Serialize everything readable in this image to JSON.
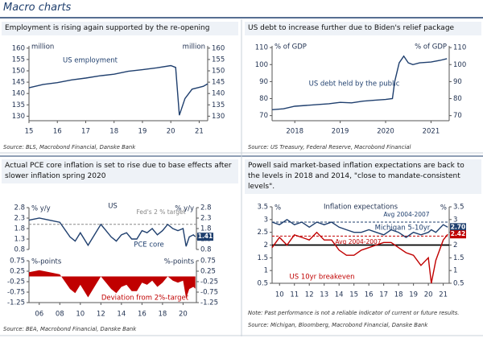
{
  "page_title": "Macro charts",
  "chart_data": [
    {
      "type": "line",
      "title": "Employment is rising again supported by the re-opening",
      "source": "Source: BLS, Macrobond Financial, Danske Bank",
      "ylabel": "million",
      "y2label": "million",
      "x": [
        2015,
        2015.5,
        2016,
        2016.5,
        2017,
        2017.5,
        2018,
        2018.5,
        2019,
        2019.5,
        2020,
        2020.17,
        2020.3,
        2020.5,
        2020.75,
        2021,
        2021.15,
        2021.3
      ],
      "series": [
        {
          "name": "US employment",
          "color": "#1f3f6e",
          "values": [
            142.5,
            144,
            144.8,
            146,
            146.8,
            147.8,
            148.5,
            149.8,
            150.5,
            151.3,
            152.3,
            151.5,
            130.4,
            137.8,
            141.9,
            142.7,
            143.2,
            144.3
          ]
        }
      ],
      "xlim": [
        2015,
        2021.3
      ],
      "ylim": [
        128,
        161
      ],
      "xticks": [
        {
          "value": 2015,
          "label": "15"
        },
        {
          "value": 2016,
          "label": "16"
        },
        {
          "value": 2017,
          "label": "17"
        },
        {
          "value": 2018,
          "label": "18"
        },
        {
          "value": 2019,
          "label": "19"
        },
        {
          "value": 2020,
          "label": "20"
        },
        {
          "value": 2021,
          "label": "21"
        }
      ],
      "yticks": [
        130,
        135,
        140,
        145,
        150,
        155,
        160
      ],
      "y2lim": [
        128,
        161
      ],
      "y2ticks": [
        130,
        135,
        140,
        145,
        150,
        155,
        160
      ]
    },
    {
      "type": "line",
      "title": "US debt to increase further due to Biden's relief package",
      "source": "Source: US Treasury, Federal Reserve, Macrobond Financial",
      "ylabel": "% of GDP",
      "y2label": "% of GDP",
      "x": [
        2017.5,
        2017.75,
        2018,
        2018.25,
        2018.5,
        2018.75,
        2019,
        2019.25,
        2019.5,
        2019.75,
        2020,
        2020.15,
        2020.2,
        2020.3,
        2020.4,
        2020.5,
        2020.6,
        2020.75,
        2021,
        2021.2,
        2021.35
      ],
      "series": [
        {
          "name": "US debt held by the public",
          "color": "#1f3f6e",
          "values": [
            73.5,
            74,
            75.5,
            76,
            76.5,
            77,
            77.8,
            77.5,
            78.5,
            79,
            79.5,
            80,
            90,
            101,
            105,
            101,
            100,
            101,
            101.5,
            102.5,
            103.5
          ]
        }
      ],
      "xlim": [
        2017.5,
        2021.4
      ],
      "ylim": [
        67,
        111
      ],
      "xticks": [
        2018,
        2019,
        2020,
        2021
      ],
      "yticks": [
        70,
        80,
        90,
        100,
        110
      ],
      "y2lim": [
        67,
        111
      ],
      "y2ticks": [
        70,
        80,
        90,
        100,
        110
      ]
    },
    {
      "type": "line",
      "title": "Actual PCE core inflation is set to rise due to base effects after slower inflation spring 2020",
      "source": "Source: BEA, Macrobond Financial, Danske Bank",
      "subtitle": "US",
      "ylabel": "% y/y",
      "y2label": "% y/y",
      "x": [
        2005,
        2006,
        2007,
        2008,
        2009,
        2009.5,
        2010,
        2010.75,
        2011.5,
        2012,
        2012.5,
        2013,
        2013.5,
        2014,
        2014.5,
        2015,
        2015.5,
        2016,
        2016.5,
        2017,
        2017.5,
        2018,
        2018.5,
        2019,
        2019.5,
        2020,
        2020.3,
        2020.6,
        2021,
        2021.2
      ],
      "series": [
        {
          "name": "PCE core",
          "color": "#1f3f6e",
          "end_label": 1.41,
          "values": [
            2.2,
            2.3,
            2.2,
            2.1,
            1.4,
            1.2,
            1.6,
            1.0,
            1.6,
            2.0,
            1.7,
            1.4,
            1.2,
            1.5,
            1.6,
            1.3,
            1.3,
            1.7,
            1.6,
            1.8,
            1.5,
            1.7,
            2.0,
            1.8,
            1.7,
            1.8,
            0.95,
            1.4,
            1.5,
            1.41
          ]
        }
      ],
      "ref_lines": [
        {
          "value": 2,
          "label": "Fed's 2 % target",
          "color": "#888888",
          "dash": true
        }
      ],
      "xlim": [
        2005,
        2021.3
      ],
      "ylim": [
        0.8,
        2.8
      ],
      "yticks": [
        0.8,
        1.3,
        1.8,
        2.3,
        2.8
      ],
      "y2lim": [
        0.8,
        2.8
      ],
      "y2ticks": [
        0.8,
        1.3,
        1.8,
        2.3,
        2.8
      ]
    },
    {
      "type": "area",
      "ylabel": "%-points",
      "y2label": "%-points",
      "x": [
        2005,
        2006,
        2007,
        2008,
        2009,
        2009.5,
        2010,
        2010.75,
        2011.5,
        2012,
        2012.5,
        2013,
        2013.5,
        2014,
        2014.5,
        2015,
        2015.5,
        2016,
        2016.5,
        2017,
        2017.5,
        2018,
        2018.5,
        2019,
        2019.5,
        2020,
        2020.3,
        2020.6,
        2021,
        2021.2
      ],
      "series": [
        {
          "name": "Deviation from 2%-target",
          "color": "#c00000",
          "values": [
            0.2,
            0.3,
            0.2,
            0.1,
            -0.6,
            -0.8,
            -0.4,
            -1.0,
            -0.4,
            0.0,
            -0.3,
            -0.6,
            -0.8,
            -0.5,
            -0.4,
            -0.7,
            -0.7,
            -0.3,
            -0.4,
            -0.2,
            -0.5,
            -0.3,
            0.0,
            -0.2,
            -0.3,
            -0.2,
            -1.05,
            -0.6,
            -0.5,
            -0.59
          ]
        }
      ],
      "xlim": [
        2005,
        2021.3
      ],
      "ylim": [
        -1.25,
        0.75
      ],
      "xticks": [
        {
          "value": 2006,
          "label": "06"
        },
        {
          "value": 2008,
          "label": "08"
        },
        {
          "value": 2010,
          "label": "10"
        },
        {
          "value": 2012,
          "label": "12"
        },
        {
          "value": 2014,
          "label": "14"
        },
        {
          "value": 2016,
          "label": "16"
        },
        {
          "value": 2018,
          "label": "18"
        },
        {
          "value": 2020,
          "label": "20"
        }
      ],
      "yticks": [
        -1.25,
        -0.75,
        -0.25,
        0.25,
        0.75
      ],
      "y2lim": [
        -1.25,
        0.75
      ],
      "y2ticks": [
        -1.25,
        -0.75,
        -0.25,
        0.25,
        0.75
      ]
    },
    {
      "type": "line",
      "title": "Powell said market-based inflation expectations are back to the levels in 2018 and 2014, \"close to mandate-consistent levels\".",
      "note": "Note: Past performance is not a reliable indicator of current or future results.",
      "source": "Source: Michigan, Bloomberg, Macrobond Financial, Danske Bank",
      "subtitle": "Inflation expectations",
      "ylabel": "%",
      "y2label": "%",
      "x": [
        2009.5,
        2010,
        2010.5,
        2011,
        2011.5,
        2012,
        2012.5,
        2013,
        2013.5,
        2014,
        2014.5,
        2015,
        2015.5,
        2016,
        2016.5,
        2017,
        2017.5,
        2018,
        2018.5,
        2019,
        2019.5,
        2020,
        2020.2,
        2020.5,
        2021,
        2021.3
      ],
      "series": [
        {
          "name": "Michigan 5-10yr",
          "color": "#1f3f6e",
          "end_label": {
            "value": 2.7,
            "label": "2.70"
          },
          "values": [
            2.9,
            2.8,
            3.0,
            2.8,
            2.9,
            2.7,
            2.9,
            2.8,
            2.9,
            2.7,
            2.6,
            2.5,
            2.5,
            2.6,
            2.5,
            2.4,
            2.6,
            2.5,
            2.3,
            2.5,
            2.4,
            2.5,
            2.6,
            2.5,
            2.8,
            2.7
          ]
        },
        {
          "name": "US 10yr breakeven",
          "color": "#c00000",
          "end_label": 2.42,
          "values": [
            1.9,
            2.3,
            2.0,
            2.4,
            2.3,
            2.2,
            2.5,
            2.2,
            2.2,
            1.8,
            1.6,
            1.6,
            1.8,
            1.9,
            2.0,
            2.1,
            2.1,
            1.9,
            1.7,
            1.6,
            1.2,
            1.5,
            0.5,
            1.4,
            2.2,
            2.42
          ]
        }
      ],
      "ref_lines": [
        {
          "value": 2.9,
          "label": "Avg 2004-2007",
          "color": "#1f3f6e",
          "dash": true
        },
        {
          "value": 2.35,
          "label": "Avg 2004-2007",
          "color": "#c00000",
          "dash": true
        },
        {
          "value": 2.0,
          "color": "#000000"
        }
      ],
      "xlim": [
        2009.5,
        2021.4
      ],
      "ylim": [
        0.5,
        3.5
      ],
      "xticks": [
        {
          "value": 2010,
          "label": "10"
        },
        {
          "value": 2011,
          "label": "11"
        },
        {
          "value": 2012,
          "label": "12"
        },
        {
          "value": 2013,
          "label": "13"
        },
        {
          "value": 2014,
          "label": "14"
        },
        {
          "value": 2015,
          "label": "15"
        },
        {
          "value": 2016,
          "label": "16"
        },
        {
          "value": 2017,
          "label": "17"
        },
        {
          "value": 2018,
          "label": "18"
        },
        {
          "value": 2019,
          "label": "19"
        },
        {
          "value": 2020,
          "label": "20"
        },
        {
          "value": 2021,
          "label": "21"
        }
      ],
      "yticks": [
        0.5,
        1.0,
        1.5,
        2.0,
        2.5,
        3.0,
        3.5
      ],
      "y2lim": [
        0.5,
        3.5
      ],
      "y2ticks": [
        0.5,
        1.0,
        1.5,
        2.0,
        2.5,
        3.0,
        3.5
      ]
    }
  ]
}
